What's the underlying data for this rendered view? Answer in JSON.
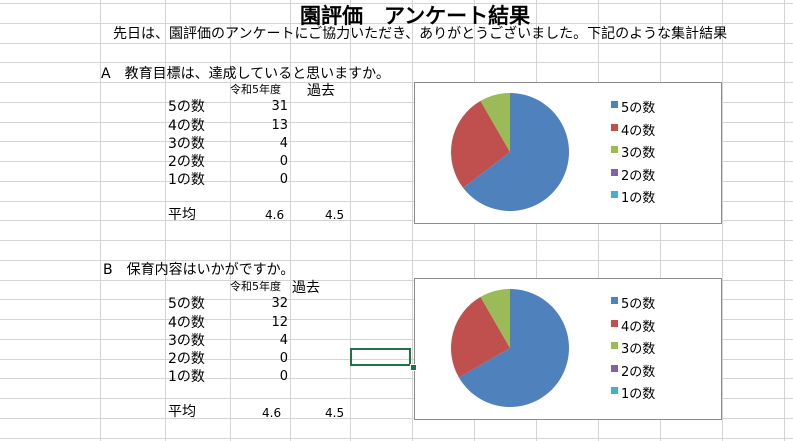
{
  "title": "園評価　アンケート結果",
  "subtitle": "先日は、園評価のアンケートにご協力いただき、ありがとうございました。下記のような集計結果",
  "sections": [
    {
      "question": "A　教育目標は、達成していると思いますか。",
      "col_current": "令和5年度",
      "col_past": "過去",
      "rows": [
        {
          "label": "5の数",
          "value": "31"
        },
        {
          "label": "4の数",
          "value": "13"
        },
        {
          "label": "3の数",
          "value": "4"
        },
        {
          "label": "2の数",
          "value": "0"
        },
        {
          "label": "1の数",
          "value": "0"
        }
      ],
      "avg_label": "平均",
      "avg_current": "4.6",
      "avg_past": "4.5"
    },
    {
      "question": "B　保育内容はいかがですか。",
      "col_current": "令和5年度",
      "col_past": "過去",
      "rows": [
        {
          "label": "5の数",
          "value": "32"
        },
        {
          "label": "4の数",
          "value": "12"
        },
        {
          "label": "3の数",
          "value": "4"
        },
        {
          "label": "2の数",
          "value": "0"
        },
        {
          "label": "1の数",
          "value": "0"
        }
      ],
      "avg_label": "平均",
      "avg_current": "4.6",
      "avg_past": "4.5"
    }
  ],
  "chart_data": [
    {
      "type": "pie",
      "categories": [
        "5の数",
        "4の数",
        "3の数",
        "2の数",
        "1の数"
      ],
      "values": [
        31,
        13,
        4,
        0,
        0
      ],
      "colors": [
        "#4f81bd",
        "#c0504d",
        "#9bbb59",
        "#8064a2",
        "#4bacc6"
      ],
      "legend": "right"
    },
    {
      "type": "pie",
      "categories": [
        "5の数",
        "4の数",
        "3の数",
        "2の数",
        "1の数"
      ],
      "values": [
        32,
        12,
        4,
        0,
        0
      ],
      "colors": [
        "#4f81bd",
        "#c0504d",
        "#9bbb59",
        "#8064a2",
        "#4bacc6"
      ],
      "legend": "right"
    }
  ],
  "selection_color": "#217346"
}
